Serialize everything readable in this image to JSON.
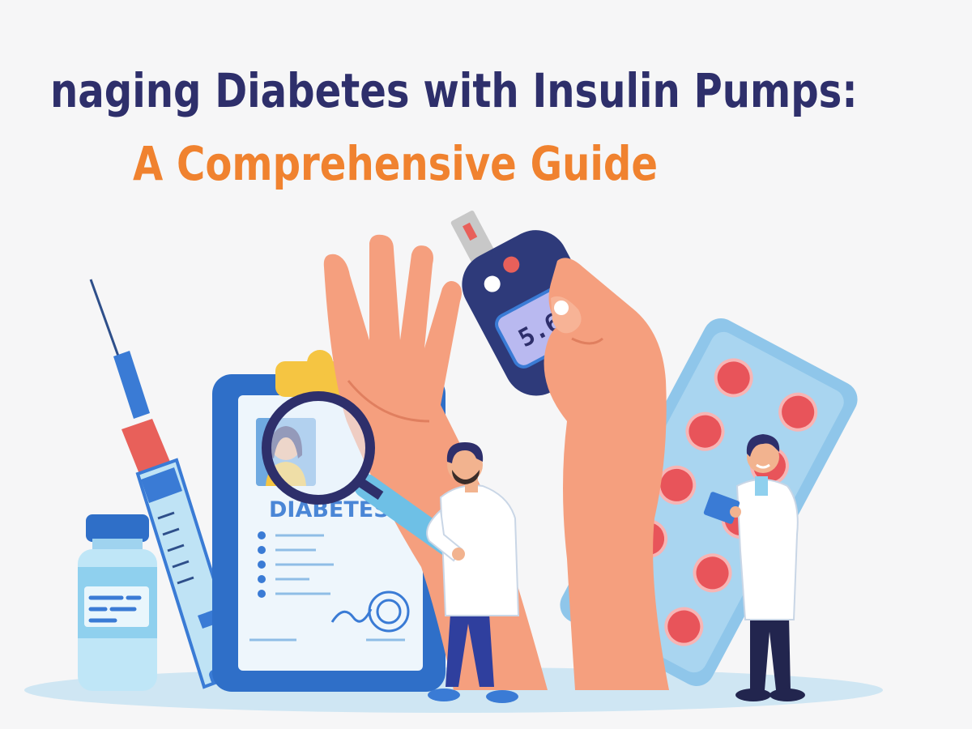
{
  "title": {
    "line1": "naging Diabetes with Insulin Pumps:",
    "line2": "A Comprehensive Guide"
  },
  "illustration": {
    "clipboard_label": "DIABETES",
    "glucose_meter_reading": "5.6"
  },
  "colors": {
    "title_primary": "#2e2f6b",
    "title_accent": "#f0822f",
    "skin": "#f59f7e",
    "blue": "#3a7bd5",
    "light_blue": "#8fc8e8"
  }
}
